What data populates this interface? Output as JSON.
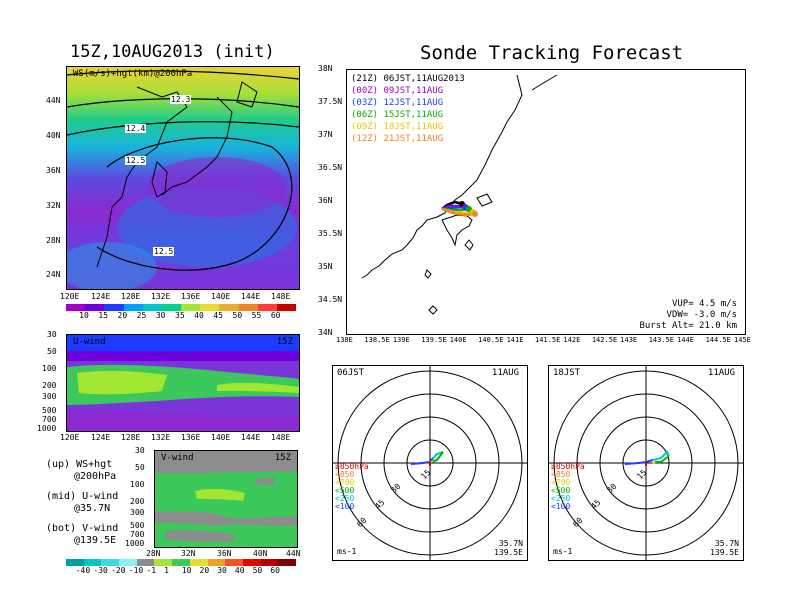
{
  "left_title": "15Z,10AUG2013 (init)",
  "right_title": "Sonde Tracking Forecast",
  "map_panel": {
    "label": "WS(m/s)+hgt(km)@200hPa",
    "lat_ticks": [
      "44N",
      "40N",
      "36N",
      "32N",
      "28N",
      "24N"
    ],
    "lon_ticks": [
      "120E",
      "124E",
      "128E",
      "132E",
      "136E",
      "140E",
      "144E",
      "148E"
    ],
    "contour_labels": [
      "12.3",
      "12.4",
      "12.5",
      "12.5"
    ],
    "colorbar_ticks": [
      "10",
      "15",
      "20",
      "25",
      "30",
      "35",
      "40",
      "45",
      "50",
      "55",
      "60"
    ],
    "colorbar_colors": [
      "#a000c8",
      "#6e00dc",
      "#1e3cff",
      "#00a0ff",
      "#00c8c8",
      "#00d28c",
      "#a0e632",
      "#e6dc32",
      "#e6af2d",
      "#f08228",
      "#fa3c3c",
      "#c80000"
    ]
  },
  "u_panel": {
    "label": "U-wind",
    "time": "15Z",
    "p_ticks": [
      "30",
      "50",
      "100",
      "200",
      "300",
      "500",
      "700",
      "1000"
    ],
    "lon_ticks": [
      "120E",
      "124E",
      "128E",
      "132E",
      "136E",
      "140E",
      "144E",
      "148E"
    ]
  },
  "v_panel": {
    "label": "V-wind",
    "time": "15Z",
    "p_ticks": [
      "30",
      "50",
      "100",
      "200",
      "300",
      "500",
      "700",
      "1000"
    ],
    "lat_ticks": [
      "28N",
      "32N",
      "36N",
      "40N",
      "44N"
    ],
    "colorbar_ticks": [
      "-40",
      "-30",
      "-20",
      "-10",
      "-1",
      "1",
      "10",
      "20",
      "30",
      "40",
      "50",
      "60"
    ]
  },
  "notes": [
    {
      "a": "(up) WS+hgt",
      "b": "@200hPa"
    },
    {
      "a": "(mid) U-wind",
      "b": "@35.7N"
    },
    {
      "a": "(bot) V-wind",
      "b": "@139.5E"
    }
  ],
  "track_panel": {
    "lat_ticks": [
      "38N",
      "37.5N",
      "37N",
      "36.5N",
      "36N",
      "35.5N",
      "35N",
      "34.5N",
      "34N"
    ],
    "lon_ticks": [
      "138E",
      "138.5E",
      "139E",
      "139.5E",
      "140E",
      "140.5E",
      "141E",
      "141.5E",
      "142E",
      "142.5E",
      "143E",
      "143.5E",
      "144E",
      "144.5E",
      "145E"
    ],
    "legend": [
      {
        "code": "(21Z)",
        "time": "06JST,11AUG2013",
        "color": "#000000"
      },
      {
        "code": "(00Z)",
        "time": "09JST,11AUG",
        "color": "#a000c8"
      },
      {
        "code": "(03Z)",
        "time": "12JST,11AUG",
        "color": "#1e3cff"
      },
      {
        "code": "(06Z)",
        "time": "15JST,11AUG",
        "color": "#00b400"
      },
      {
        "code": "(09Z)",
        "time": "18JST,11AUG",
        "color": "#e6c800"
      },
      {
        "code": "(12Z)",
        "time": "21JST,11AUG",
        "color": "#f08228"
      }
    ],
    "vup": "VUP= 4.5 m/s",
    "vdw": "VDW= -3.0 m/s",
    "burst": "Burst Alt= 21.0 km"
  },
  "hodo_left": {
    "time": "06JST",
    "date": "11AUG",
    "rings": [
      "15",
      "30",
      "45",
      "60"
    ],
    "unit": "ms-1",
    "lat": "35.7N",
    "lon": "139.5E",
    "levels": [
      {
        "t": "≥850hPa",
        "c": "#e60000"
      },
      {
        "t": "<850",
        "c": "#f08228"
      },
      {
        "t": "<700",
        "c": "#e6c800"
      },
      {
        "t": "<500",
        "c": "#00b400"
      },
      {
        "t": "<250",
        "c": "#00c8c8"
      },
      {
        "t": "<100",
        "c": "#1e3cff"
      }
    ]
  },
  "hodo_right": {
    "time": "18JST",
    "date": "11AUG",
    "rings": [
      "15",
      "30",
      "45",
      "60"
    ],
    "unit": "ms-1",
    "lat": "35.7N",
    "lon": "139.5E",
    "levels": [
      {
        "t": "≥850hPa",
        "c": "#e60000"
      },
      {
        "t": "<850",
        "c": "#f08228"
      },
      {
        "t": "<700",
        "c": "#e6c800"
      },
      {
        "t": "<500",
        "c": "#00b400"
      },
      {
        "t": "<250",
        "c": "#00c8c8"
      },
      {
        "t": "<100",
        "c": "#1e3cff"
      }
    ]
  }
}
